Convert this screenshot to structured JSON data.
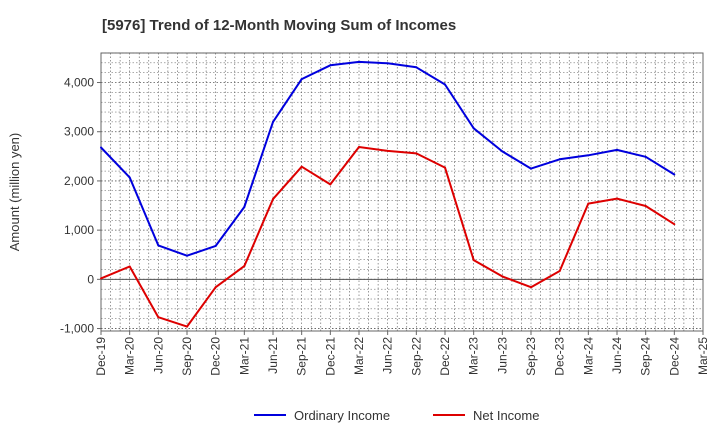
{
  "chart_data": {
    "type": "line",
    "title": "[5976]  Trend of 12-Month Moving Sum of Incomes",
    "xlabel": "",
    "ylabel": "Amount (million yen)",
    "ylim": [
      -1050,
      4600
    ],
    "yticks": [
      -1000,
      0,
      1000,
      2000,
      3000,
      4000
    ],
    "ytick_labels": [
      "-1,000",
      "0",
      "1,000",
      "2,000",
      "3,000",
      "4,000"
    ],
    "x_tick_labels": [
      "Dec-19",
      "Mar-20",
      "Jun-20",
      "Sep-20",
      "Dec-20",
      "Mar-21",
      "Jun-21",
      "Sep-21",
      "Dec-21",
      "Mar-22",
      "Jun-22",
      "Sep-22",
      "Dec-22",
      "Mar-23",
      "Jun-23",
      "Sep-23",
      "Dec-23",
      "Mar-24",
      "Jun-24",
      "Sep-24",
      "Dec-24",
      "Mar-25"
    ],
    "grid": true,
    "legend_position": "bottom-center",
    "series": [
      {
        "name": "Ordinary Income",
        "color": "#0000dd",
        "values": [
          2680,
          2070,
          690,
          480,
          680,
          1470,
          3200,
          4070,
          4350,
          4420,
          4390,
          4310,
          3960,
          3070,
          2600,
          2250,
          2440,
          2520,
          2630,
          2490,
          2130
        ]
      },
      {
        "name": "Net Income",
        "color": "#dd0000",
        "values": [
          20,
          260,
          -770,
          -960,
          -160,
          270,
          1630,
          2290,
          1930,
          2690,
          2610,
          2560,
          2270,
          390,
          60,
          -160,
          170,
          1540,
          1640,
          1490,
          1120
        ]
      }
    ]
  }
}
